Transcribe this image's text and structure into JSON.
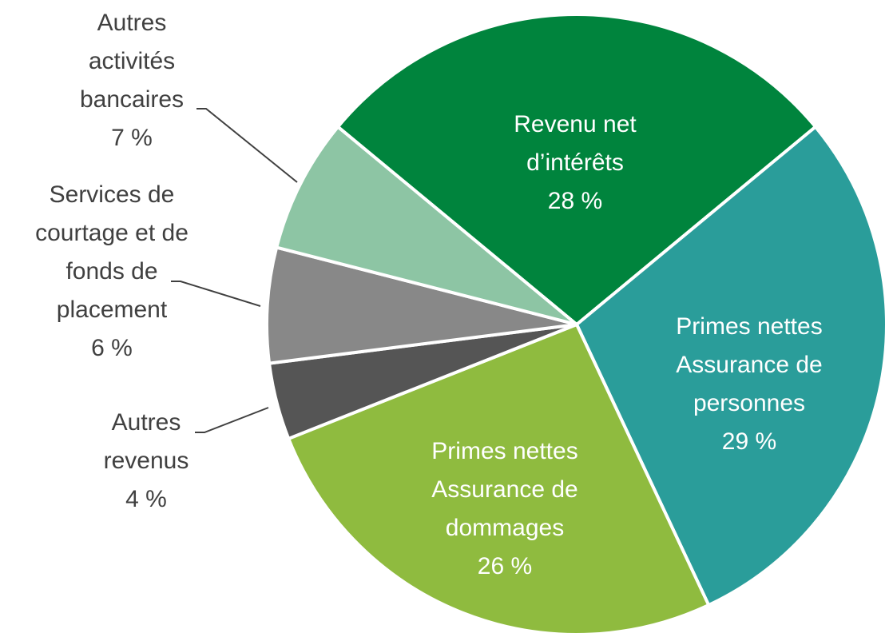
{
  "chart_data": {
    "type": "pie",
    "categories": [
      "Revenu net\nd’intérêts",
      "Primes nettes\nAssurance de\npersonnes",
      "Primes nettes\nAssurance de\ndommages",
      "Autres\nrevenus",
      "Services de\ncourtage et de\nfonds de\nplacement",
      "Autres\nactivités\nbancaires"
    ],
    "values": [
      28,
      29,
      26,
      4,
      6,
      7
    ],
    "value_labels": [
      "28 %",
      "29 %",
      "26 %",
      "4 %",
      "6 %",
      "7 %"
    ],
    "colors": [
      "#00843d",
      "#2a9d9a",
      "#8fbb3f",
      "#555555",
      "#888888",
      "#8dc5a4"
    ]
  }
}
